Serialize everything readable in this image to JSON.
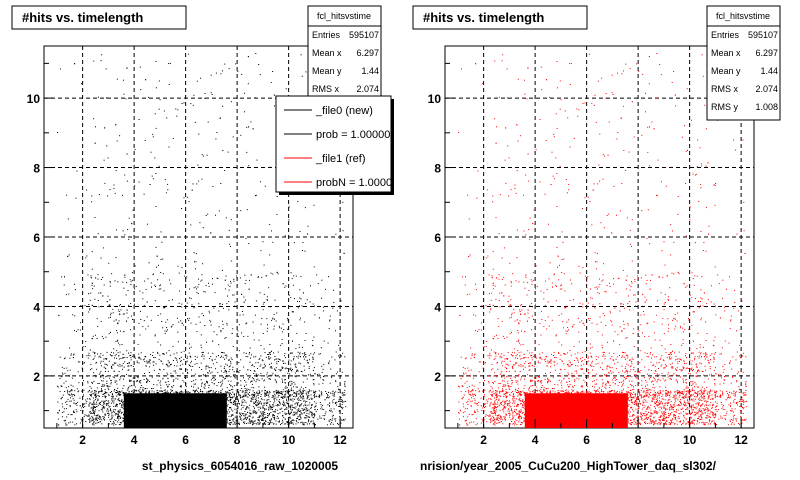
{
  "chart_data": [
    {
      "type": "scatter",
      "title": "#hits vs. timelength",
      "xlim": [
        0.5,
        12.5
      ],
      "ylim": [
        0.5,
        11.5
      ],
      "xticks": [
        2,
        4,
        6,
        8,
        10,
        12
      ],
      "yticks": [
        2,
        4,
        6,
        8,
        10
      ],
      "grid": true,
      "color": "#000000",
      "stats": {
        "name": "fcl_hitsvstime",
        "rows": [
          {
            "label": "Entries",
            "value": "595107"
          },
          {
            "label": "Mean x",
            "value": "6.297"
          },
          {
            "label": "Mean y",
            "value": "1.44"
          },
          {
            "label": "RMS x",
            "value": "2.074"
          }
        ]
      },
      "legend": {
        "placement": "top-right",
        "entries": [
          {
            "label": "_file0 (new)",
            "color": "#000000"
          },
          {
            "label": "prob = 1.000000",
            "color": "#000000"
          },
          {
            "label": "_file1 (ref)",
            "color": "#ff0000"
          },
          {
            "label": "probN = 1.000000",
            "color": "#ff0000"
          }
        ]
      },
      "file_label": "st_physics_6054016_raw_1020005",
      "dense_region": {
        "x": [
          3.6,
          7.6
        ],
        "y": [
          0.5,
          1.5
        ]
      }
    },
    {
      "type": "scatter",
      "title": "#hits vs. timelength",
      "xlim": [
        0.5,
        12.5
      ],
      "ylim": [
        0.5,
        11.5
      ],
      "xticks": [
        2,
        4,
        6,
        8,
        10,
        12
      ],
      "yticks": [
        2,
        4,
        6,
        8,
        10
      ],
      "grid": true,
      "color": "#ff0000",
      "stats": {
        "name": "fcl_hitsvstime",
        "rows": [
          {
            "label": "Entries",
            "value": "595107"
          },
          {
            "label": "Mean x",
            "value": "6.297"
          },
          {
            "label": "Mean y",
            "value": "1.44"
          },
          {
            "label": "RMS x",
            "value": "2.074"
          },
          {
            "label": "RMS y",
            "value": "1.008"
          }
        ]
      },
      "file_label": "nrision/year_2005_CuCu200_HighTower_daq_sl302/",
      "dense_region": {
        "x": [
          3.6,
          7.6
        ],
        "y": [
          0.5,
          1.5
        ]
      }
    }
  ]
}
